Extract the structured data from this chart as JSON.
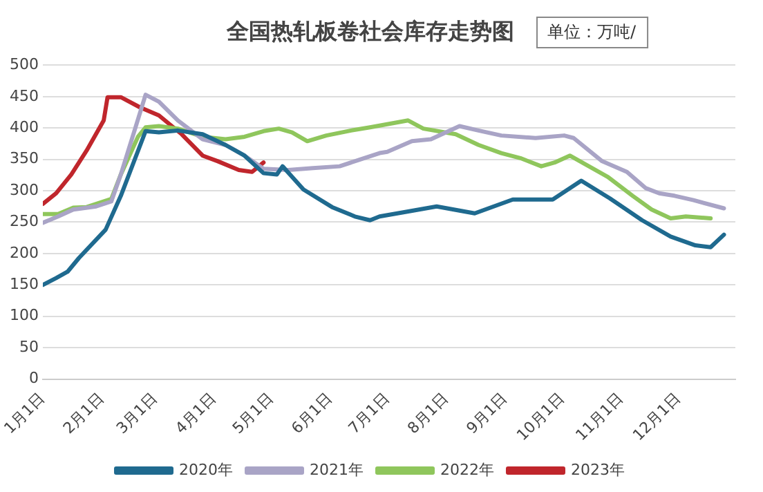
{
  "chart_data": {
    "type": "line",
    "title": "全国热轧板卷社会库存走势图",
    "annotations": [
      "单位：万吨/"
    ],
    "xlim": [
      "--01-01",
      "--12-31"
    ],
    "xticks": [
      {
        "value": "--01-01",
        "label": "1月1日"
      },
      {
        "value": "--02-01",
        "label": "2月1日"
      },
      {
        "value": "--03-01",
        "label": "3月1日"
      },
      {
        "value": "--04-01",
        "label": "4月1日"
      },
      {
        "value": "--05-01",
        "label": "5月1日"
      },
      {
        "value": "--06-01",
        "label": "6月1日"
      },
      {
        "value": "--07-01",
        "label": "7月1日"
      },
      {
        "value": "--08-01",
        "label": "8月1日"
      },
      {
        "value": "--09-01",
        "label": "9月1日"
      },
      {
        "value": "--10-01",
        "label": "10月1日"
      },
      {
        "value": "--11-01",
        "label": "11月1日"
      },
      {
        "value": "--12-01",
        "label": "12月1日"
      }
    ],
    "ylim": [
      0,
      500
    ],
    "yticks": [
      0,
      50,
      100,
      150,
      200,
      250,
      300,
      350,
      400,
      450,
      500
    ],
    "grid": "y",
    "legend": "bottom",
    "marker": "none",
    "line_style": "solid",
    "series": [
      {
        "name": "2020年",
        "color": "#1f6a8f",
        "x": [
          "--01-01",
          "--01-08",
          "--01-14",
          "--01-20",
          "--02-03",
          "--02-11",
          "--02-24",
          "--03-03",
          "--03-13",
          "--03-26",
          "--04-07",
          "--04-17",
          "--04-27",
          "--05-04",
          "--05-07",
          "--05-18",
          "--06-02",
          "--06-14",
          "--06-22",
          "--06-27",
          "--07-10",
          "--07-27",
          "--08-16",
          "--08-26",
          "--09-05",
          "--09-26",
          "--10-11",
          "--10-26",
          "--11-12",
          "--11-27",
          "--12-10",
          "--12-18",
          "--12-25"
        ],
        "values": [
          150,
          161,
          171,
          193,
          238,
          292,
          395,
          393,
          396,
          390,
          373,
          356,
          328,
          326,
          339,
          302,
          274,
          259,
          253,
          259,
          266,
          275,
          264,
          275,
          286,
          286,
          316,
          288,
          253,
          227,
          213,
          210,
          230
        ]
      },
      {
        "name": "2021年",
        "color": "#a9a4c6",
        "x": [
          "--01-01",
          "--01-09",
          "--01-17",
          "--01-29",
          "--02-06",
          "--02-11",
          "--02-18",
          "--02-24",
          "--03-03",
          "--03-13",
          "--03-26",
          "--04-07",
          "--04-17",
          "--04-27",
          "--05-10",
          "--05-23",
          "--06-06",
          "--06-17",
          "--06-27",
          "--07-01",
          "--07-14",
          "--07-24",
          "--08-08",
          "--08-18",
          "--08-30",
          "--09-17",
          "--10-02",
          "--10-07",
          "--10-22",
          "--11-04",
          "--11-14",
          "--11-21",
          "--11-29",
          "--12-09",
          "--12-25"
        ],
        "values": [
          249,
          259,
          270,
          275,
          283,
          326,
          394,
          453,
          442,
          412,
          382,
          373,
          356,
          335,
          333,
          336,
          339,
          350,
          360,
          362,
          379,
          382,
          403,
          396,
          388,
          384,
          388,
          384,
          347,
          330,
          304,
          296,
          292,
          285,
          272
        ]
      },
      {
        "name": "2022年",
        "color": "#8fc65c",
        "x": [
          "--01-01",
          "--01-09",
          "--01-17",
          "--01-24",
          "--02-06",
          "--02-11",
          "--02-20",
          "--02-24",
          "--03-03",
          "--03-13",
          "--03-26",
          "--04-07",
          "--04-17",
          "--04-27",
          "--05-05",
          "--05-12",
          "--05-20",
          "--05-30",
          "--06-12",
          "--06-22",
          "--07-12",
          "--07-20",
          "--08-06",
          "--08-18",
          "--08-30",
          "--09-09",
          "--09-20",
          "--09-27",
          "--10-05",
          "--10-15",
          "--10-25",
          "--11-07",
          "--11-17",
          "--11-27",
          "--12-05",
          "--12-18"
        ],
        "values": [
          263,
          263,
          273,
          274,
          287,
          326,
          386,
          401,
          403,
          399,
          386,
          382,
          386,
          395,
          399,
          393,
          379,
          388,
          396,
          401,
          412,
          399,
          390,
          373,
          360,
          352,
          339,
          345,
          356,
          339,
          322,
          292,
          270,
          256,
          259,
          256
        ]
      },
      {
        "name": "2023年",
        "color": "#c0262c",
        "x": [
          "--01-01",
          "--01-08",
          "--01-16",
          "--01-24",
          "--02-02",
          "--02-04",
          "--02-11",
          "--02-21",
          "--03-03",
          "--03-15",
          "--03-26",
          "--04-03",
          "--04-14",
          "--04-21",
          "--04-27"
        ],
        "values": [
          279,
          296,
          326,
          364,
          412,
          449,
          449,
          433,
          420,
          390,
          356,
          347,
          333,
          330,
          345
        ]
      }
    ]
  }
}
